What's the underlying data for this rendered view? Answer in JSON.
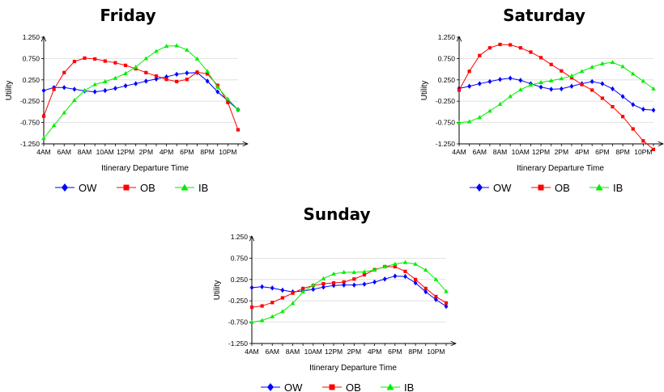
{
  "chart_data": [
    {
      "type": "line",
      "title": "Friday",
      "xlabel": "Itinerary Departure Time",
      "ylabel": "Utility",
      "x_ticks": [
        "4AM",
        "6AM",
        "8AM",
        "10AM",
        "12PM",
        "2PM",
        "4PM",
        "6PM",
        "8PM",
        "10PM"
      ],
      "y_ticks": [
        "1.250",
        "0.750",
        "0.250",
        "-0.250",
        "-0.750",
        "-1.250"
      ],
      "xlim": [
        4,
        23
      ],
      "ylim": [
        -1.25,
        1.25
      ],
      "grid": "horizontal",
      "legend": "bottom",
      "series": [
        {
          "name": "OW",
          "color": "#0000ff",
          "marker": "diamond",
          "x": [
            4,
            5,
            6,
            7,
            8,
            9,
            10,
            11,
            12,
            13,
            14,
            15,
            16,
            17,
            18,
            19,
            20,
            21,
            22,
            23
          ],
          "y": [
            0.0,
            0.07,
            0.07,
            0.03,
            -0.01,
            -0.03,
            0.0,
            0.05,
            0.11,
            0.16,
            0.22,
            0.27,
            0.32,
            0.38,
            0.41,
            0.42,
            0.22,
            -0.03,
            -0.24,
            -0.45
          ]
        },
        {
          "name": "OB",
          "color": "#ff0000",
          "marker": "square",
          "x": [
            4,
            5,
            6,
            7,
            8,
            9,
            10,
            11,
            12,
            13,
            14,
            15,
            16,
            17,
            18,
            19,
            20,
            21,
            22,
            23
          ],
          "y": [
            -0.6,
            0.03,
            0.42,
            0.68,
            0.76,
            0.74,
            0.69,
            0.65,
            0.59,
            0.51,
            0.42,
            0.34,
            0.26,
            0.21,
            0.26,
            0.43,
            0.39,
            0.12,
            -0.28,
            -0.92
          ]
        },
        {
          "name": "IB",
          "color": "#00ee00",
          "marker": "triangle",
          "x": [
            4,
            5,
            6,
            7,
            8,
            9,
            10,
            11,
            12,
            13,
            14,
            15,
            16,
            17,
            18,
            19,
            20,
            21,
            22,
            23
          ],
          "y": [
            -1.12,
            -0.82,
            -0.52,
            -0.23,
            0.0,
            0.14,
            0.21,
            0.29,
            0.4,
            0.55,
            0.75,
            0.92,
            1.04,
            1.05,
            0.95,
            0.74,
            0.45,
            0.08,
            -0.2,
            -0.45
          ]
        }
      ]
    },
    {
      "type": "line",
      "title": "Saturday",
      "xlabel": "Itinerary Departure Time",
      "ylabel": "Utility",
      "x_ticks": [
        "4AM",
        "6AM",
        "8AM",
        "10AM",
        "12PM",
        "2PM",
        "4PM",
        "6PM",
        "8PM",
        "10PM"
      ],
      "y_ticks": [
        "1.250",
        "0.750",
        "0.250",
        "-0.250",
        "-0.750",
        "-1.250"
      ],
      "xlim": [
        4,
        23
      ],
      "ylim": [
        -1.25,
        1.25
      ],
      "grid": "horizontal",
      "legend": "bottom",
      "series": [
        {
          "name": "OW",
          "color": "#0000ff",
          "marker": "diamond",
          "x": [
            4,
            5,
            6,
            7,
            8,
            9,
            10,
            11,
            12,
            13,
            14,
            15,
            16,
            17,
            18,
            19,
            20,
            21,
            22,
            23
          ],
          "y": [
            0.05,
            0.1,
            0.16,
            0.21,
            0.26,
            0.29,
            0.24,
            0.16,
            0.08,
            0.03,
            0.04,
            0.1,
            0.16,
            0.21,
            0.16,
            0.04,
            -0.14,
            -0.33,
            -0.44,
            -0.46
          ]
        },
        {
          "name": "OB",
          "color": "#ff0000",
          "marker": "square",
          "x": [
            4,
            5,
            6,
            7,
            8,
            9,
            10,
            11,
            12,
            13,
            14,
            15,
            16,
            17,
            18,
            19,
            20,
            21,
            22,
            23
          ],
          "y": [
            0.01,
            0.45,
            0.82,
            1.0,
            1.08,
            1.07,
            1.0,
            0.9,
            0.77,
            0.61,
            0.46,
            0.3,
            0.14,
            0.01,
            -0.18,
            -0.38,
            -0.61,
            -0.9,
            -1.18,
            -1.38
          ]
        },
        {
          "name": "IB",
          "color": "#00ee00",
          "marker": "triangle",
          "x": [
            4,
            5,
            6,
            7,
            8,
            9,
            10,
            11,
            12,
            13,
            14,
            15,
            16,
            17,
            18,
            19,
            20,
            21,
            22,
            23
          ],
          "y": [
            -0.75,
            -0.73,
            -0.63,
            -0.48,
            -0.32,
            -0.14,
            0.02,
            0.13,
            0.19,
            0.23,
            0.28,
            0.34,
            0.45,
            0.55,
            0.63,
            0.66,
            0.56,
            0.39,
            0.22,
            0.04
          ]
        }
      ]
    },
    {
      "type": "line",
      "title": "Sunday",
      "xlabel": "Itinerary Departure Time",
      "ylabel": "Utility",
      "x_ticks": [
        "4AM",
        "6AM",
        "8AM",
        "10AM",
        "12PM",
        "2PM",
        "4PM",
        "6PM",
        "8PM",
        "10PM"
      ],
      "y_ticks": [
        "1.250",
        "0.750",
        "0.250",
        "-0.250",
        "-0.750",
        "-1.250"
      ],
      "xlim": [
        4,
        23
      ],
      "ylim": [
        -1.25,
        1.25
      ],
      "grid": "horizontal",
      "legend": "bottom",
      "series": [
        {
          "name": "OW",
          "color": "#0000ff",
          "marker": "diamond",
          "x": [
            4,
            5,
            6,
            7,
            8,
            9,
            10,
            11,
            12,
            13,
            14,
            15,
            16,
            17,
            18,
            19,
            20,
            21,
            22,
            23
          ],
          "y": [
            0.06,
            0.08,
            0.05,
            0.0,
            -0.04,
            -0.02,
            0.02,
            0.07,
            0.11,
            0.12,
            0.12,
            0.14,
            0.19,
            0.26,
            0.33,
            0.32,
            0.17,
            -0.04,
            -0.22,
            -0.38
          ]
        },
        {
          "name": "OB",
          "color": "#ff0000",
          "marker": "square",
          "x": [
            4,
            5,
            6,
            7,
            8,
            9,
            10,
            11,
            12,
            13,
            14,
            15,
            16,
            17,
            18,
            19,
            20,
            21,
            22,
            23
          ],
          "y": [
            -0.4,
            -0.37,
            -0.29,
            -0.18,
            -0.07,
            0.04,
            0.11,
            0.15,
            0.17,
            0.19,
            0.26,
            0.36,
            0.48,
            0.55,
            0.55,
            0.44,
            0.25,
            0.04,
            -0.15,
            -0.3
          ]
        },
        {
          "name": "IB",
          "color": "#00ee00",
          "marker": "triangle",
          "x": [
            4,
            5,
            6,
            7,
            8,
            9,
            10,
            11,
            12,
            13,
            14,
            15,
            16,
            17,
            18,
            19,
            20,
            21,
            22,
            23
          ],
          "y": [
            -0.75,
            -0.71,
            -0.62,
            -0.5,
            -0.31,
            -0.04,
            0.12,
            0.27,
            0.38,
            0.42,
            0.42,
            0.43,
            0.47,
            0.55,
            0.61,
            0.65,
            0.61,
            0.47,
            0.25,
            -0.03
          ]
        }
      ]
    }
  ]
}
